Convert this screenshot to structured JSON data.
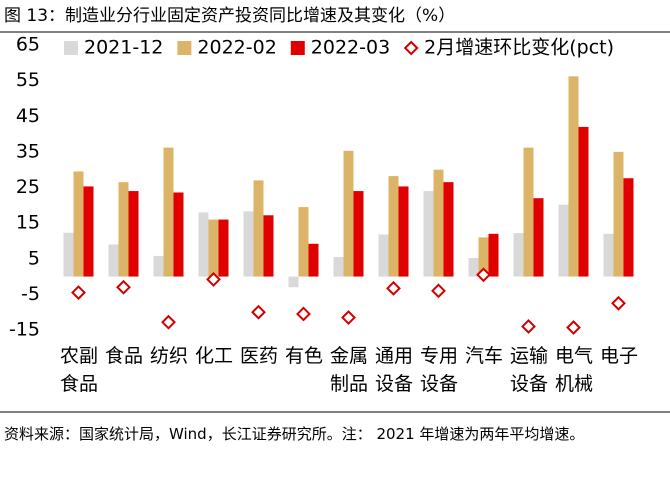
{
  "chart_data": {
    "type": "bar",
    "title": "图 13：制造业分行业固定资产投资同比增速及其变化（%）",
    "categories": [
      "农副食品",
      "食品",
      "纺织",
      "化工",
      "医药",
      "有色",
      "金属制品",
      "通用设备",
      "专用设备",
      "汽车",
      "运输设备",
      "电气机械",
      "电子"
    ],
    "series": [
      {
        "name": "2021-12",
        "color": "#d9d9d9",
        "values": [
          12.3,
          9,
          5.8,
          18,
          18.3,
          -3,
          5.5,
          11.8,
          24,
          5.2,
          12.2,
          20.2,
          12
        ]
      },
      {
        "name": "2022-02",
        "color": "#dcb468",
        "values": [
          29.5,
          26.5,
          36.2,
          16,
          27,
          19.5,
          35.3,
          28.2,
          30,
          11,
          36.2,
          56.2,
          35
        ]
      },
      {
        "name": "2022-03",
        "color": "#e00000",
        "values": [
          25.3,
          24,
          23.6,
          16,
          17.2,
          9.2,
          24,
          25.3,
          26.5,
          12,
          22,
          42,
          27.6
        ]
      },
      {
        "name": "2月增速环比变化(pct)",
        "type": "scatter",
        "marker": "diamond",
        "color": "#d40000",
        "values": [
          -4.5,
          -3,
          -12.8,
          -0.8,
          -10,
          -10.5,
          -11.5,
          -3.3,
          -4,
          0.5,
          -14,
          -14.3,
          -7.5
        ]
      }
    ],
    "ylim": [
      -15,
      65
    ],
    "yticks": [
      -15,
      -5,
      5,
      15,
      25,
      35,
      45,
      55,
      65
    ],
    "grid": false,
    "note": "资料来源：国家统计局，Wind，长江证券研究所。注：  2021 年增速为两年平均增速。"
  }
}
